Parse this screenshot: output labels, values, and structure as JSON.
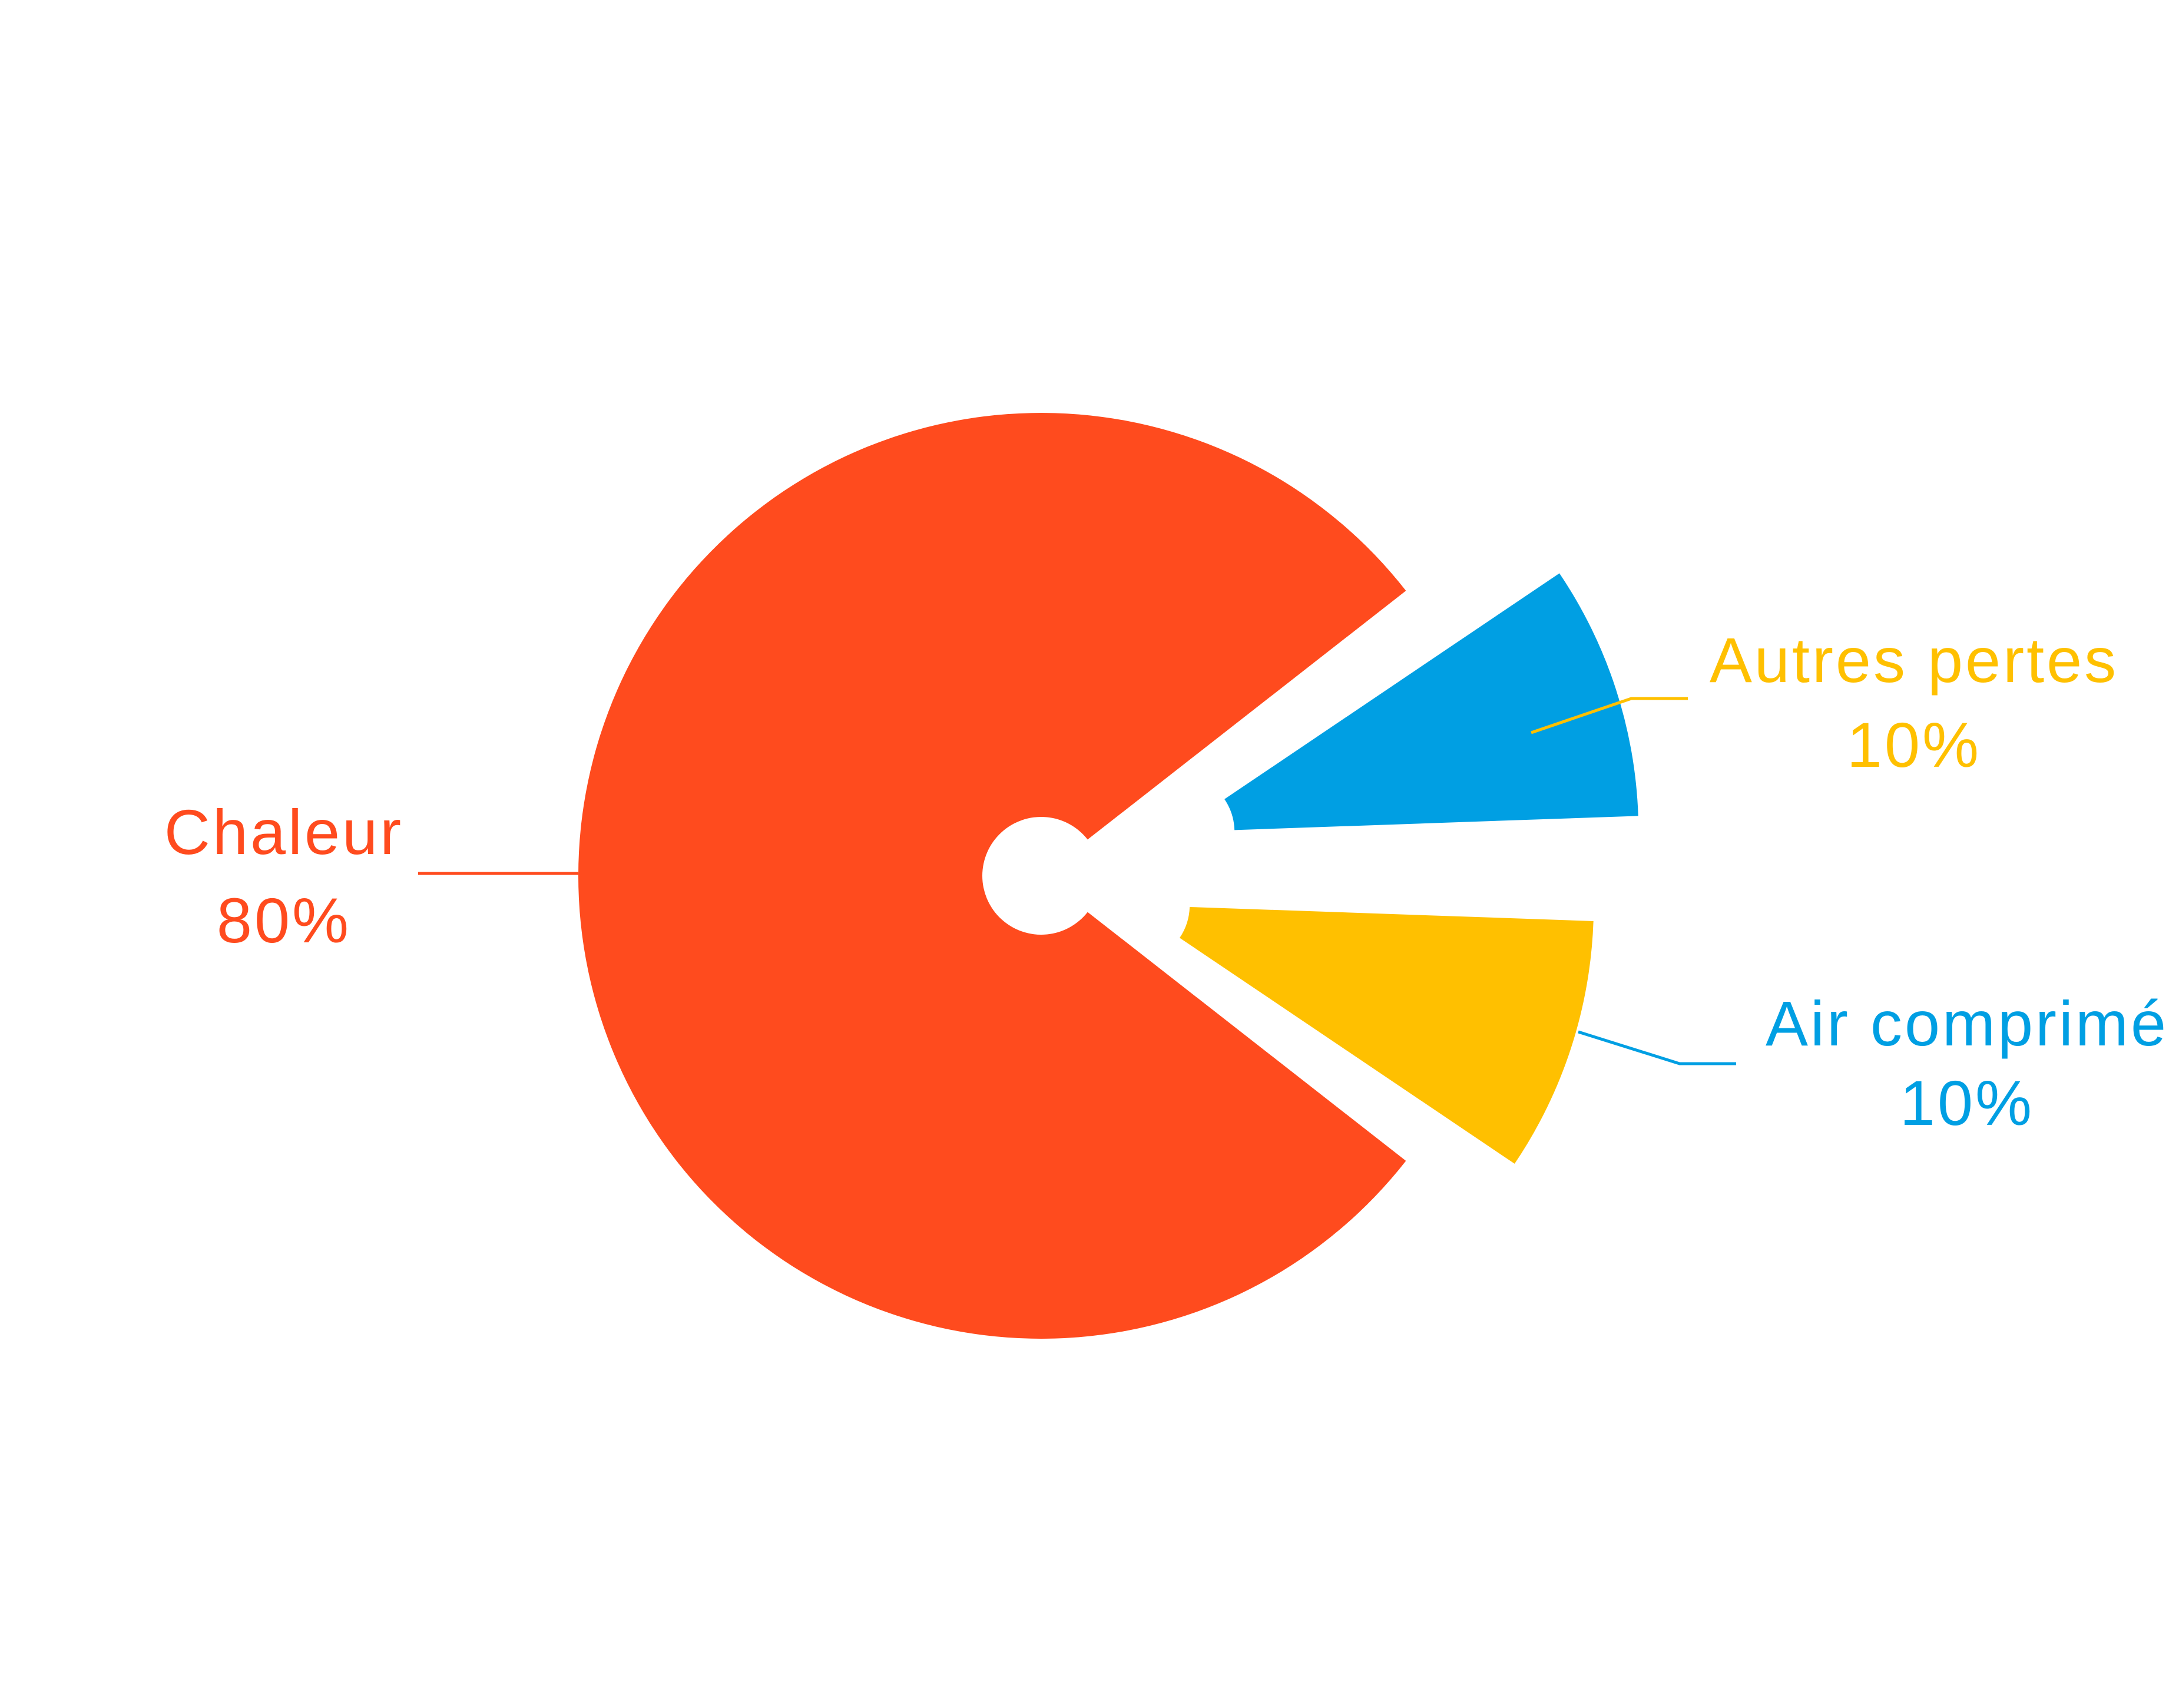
{
  "chart_data": {
    "type": "pie",
    "variant": "donut-exploded",
    "slices": [
      {
        "label": "Chaleur",
        "value": 80,
        "value_label": "80%",
        "color": "#FF4B1E"
      },
      {
        "label": "Autres pertes",
        "value": 10,
        "value_label": "10%",
        "color": "#FFC000"
      },
      {
        "label": "Air comprimé",
        "value": 10,
        "value_label": "10%",
        "color": "#009FE3"
      }
    ]
  }
}
